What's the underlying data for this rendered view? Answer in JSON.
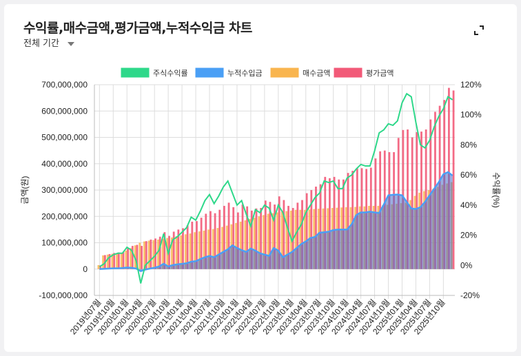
{
  "header": {
    "title": "수익률,매수금액,평가금액,누적수익금 차트",
    "period_label": "전체 기간",
    "expand_icon": "expand-icon"
  },
  "chart_data": {
    "type": "bar",
    "title": "",
    "ylabel": "금액(원)",
    "y2label": "수익률(%)",
    "ylim": [
      -100000000,
      700000000
    ],
    "y2lim": [
      -20,
      120
    ],
    "yticks": [
      "700,000,000",
      "600,000,000",
      "500,000,000",
      "400,000,000",
      "300,000,000",
      "200,000,000",
      "100,000,000",
      "0",
      "-100,000,000"
    ],
    "y2ticks": [
      "120%",
      "100%",
      "80%",
      "60%",
      "40%",
      "20%",
      "0%",
      "-20%"
    ],
    "grid": true,
    "legend_position": "top",
    "xtick_labels": [
      "2019년07월",
      "2019년10월",
      "2020년01월",
      "2020년04월",
      "2020년07월",
      "2020년10월",
      "2021년01월",
      "2021년04월",
      "2021년07월",
      "2021년10월",
      "2022년01월",
      "2022년04월",
      "2022년07월",
      "2022년10월",
      "2023년01월",
      "2023년04월",
      "2023년07월",
      "2023년10월",
      "2024년01월",
      "2024년04월",
      "2024년07월",
      "2024년10월",
      "2025년01월",
      "2025년04월",
      "2025년07월",
      "2025년10월"
    ],
    "x_start": "2019-07",
    "x_end": "2025-12",
    "unit_money": "KRW (millions in values)",
    "series": [
      {
        "name": "주식수익률",
        "type": "line",
        "axis": "right",
        "color": "#2ed88a",
        "values": [
          -1,
          1,
          5,
          7,
          8,
          8,
          12,
          10,
          3,
          -12,
          0,
          3,
          6,
          10,
          21,
          8,
          17,
          19,
          22,
          25,
          32,
          30,
          36,
          43,
          47,
          41,
          46,
          52,
          56,
          48,
          40,
          43,
          34,
          26,
          37,
          35,
          40,
          38,
          30,
          40,
          35,
          25,
          16,
          22,
          27,
          35,
          40,
          45,
          48,
          56,
          55,
          56,
          51,
          51,
          58,
          60,
          64,
          67,
          66,
          66,
          76,
          88,
          90,
          94,
          93,
          96,
          108,
          114,
          112,
          95,
          80,
          78,
          83,
          92,
          99,
          104,
          112,
          110
        ]
      },
      {
        "name": "누적수입금",
        "type": "area",
        "axis": "left",
        "color": "#4a9ff5",
        "values": [
          0,
          1,
          2,
          3,
          3,
          4,
          6,
          5,
          2,
          -8,
          -2,
          2,
          5,
          10,
          20,
          10,
          15,
          18,
          20,
          22,
          28,
          30,
          38,
          45,
          50,
          45,
          55,
          65,
          75,
          90,
          80,
          72,
          65,
          78,
          70,
          60,
          55,
          50,
          80,
          70,
          45,
          55,
          65,
          80,
          95,
          105,
          118,
          122,
          138,
          140,
          142,
          148,
          150,
          150,
          150,
          170,
          205,
          215,
          215,
          218,
          215,
          213,
          245,
          280,
          282,
          283,
          280,
          255,
          230,
          228,
          235,
          255,
          280,
          305,
          330,
          360,
          368,
          355
        ]
      },
      {
        "name": "매수금액",
        "type": "bar",
        "axis": "left",
        "color": "#f9b54f",
        "values": [
          15,
          52,
          55,
          58,
          60,
          62,
          70,
          80,
          90,
          100,
          105,
          108,
          110,
          112,
          115,
          118,
          120,
          125,
          128,
          132,
          135,
          140,
          143,
          146,
          150,
          152,
          156,
          160,
          165,
          170,
          175,
          180,
          185,
          190,
          195,
          200,
          205,
          210,
          212,
          215,
          218,
          220,
          222,
          225,
          225,
          225,
          226,
          228,
          229,
          230,
          231,
          232,
          233,
          234,
          235,
          235,
          236,
          238,
          238,
          240,
          240,
          240,
          242,
          244,
          246,
          248,
          250,
          252,
          262,
          278,
          290,
          296,
          300,
          305,
          312,
          320,
          325,
          330
        ]
      },
      {
        "name": "평가금액",
        "type": "bar",
        "axis": "left",
        "color": "#f25a78",
        "values": [
          14,
          53,
          57,
          61,
          63,
          66,
          80,
          88,
          92,
          88,
          106,
          112,
          116,
          123,
          140,
          126,
          142,
          150,
          155,
          166,
          180,
          182,
          195,
          210,
          220,
          212,
          225,
          240,
          252,
          235,
          215,
          245,
          238,
          222,
          230,
          232,
          260,
          255,
          245,
          276,
          262,
          240,
          232,
          252,
          262,
          288,
          300,
          313,
          322,
          350,
          345,
          350,
          340,
          340,
          365,
          373,
          382,
          383,
          380,
          385,
          420,
          447,
          450,
          444,
          444,
          498,
          528,
          530,
          500,
          520,
          522,
          530,
          568,
          597,
          620,
          642,
          688,
          678
        ]
      }
    ]
  }
}
